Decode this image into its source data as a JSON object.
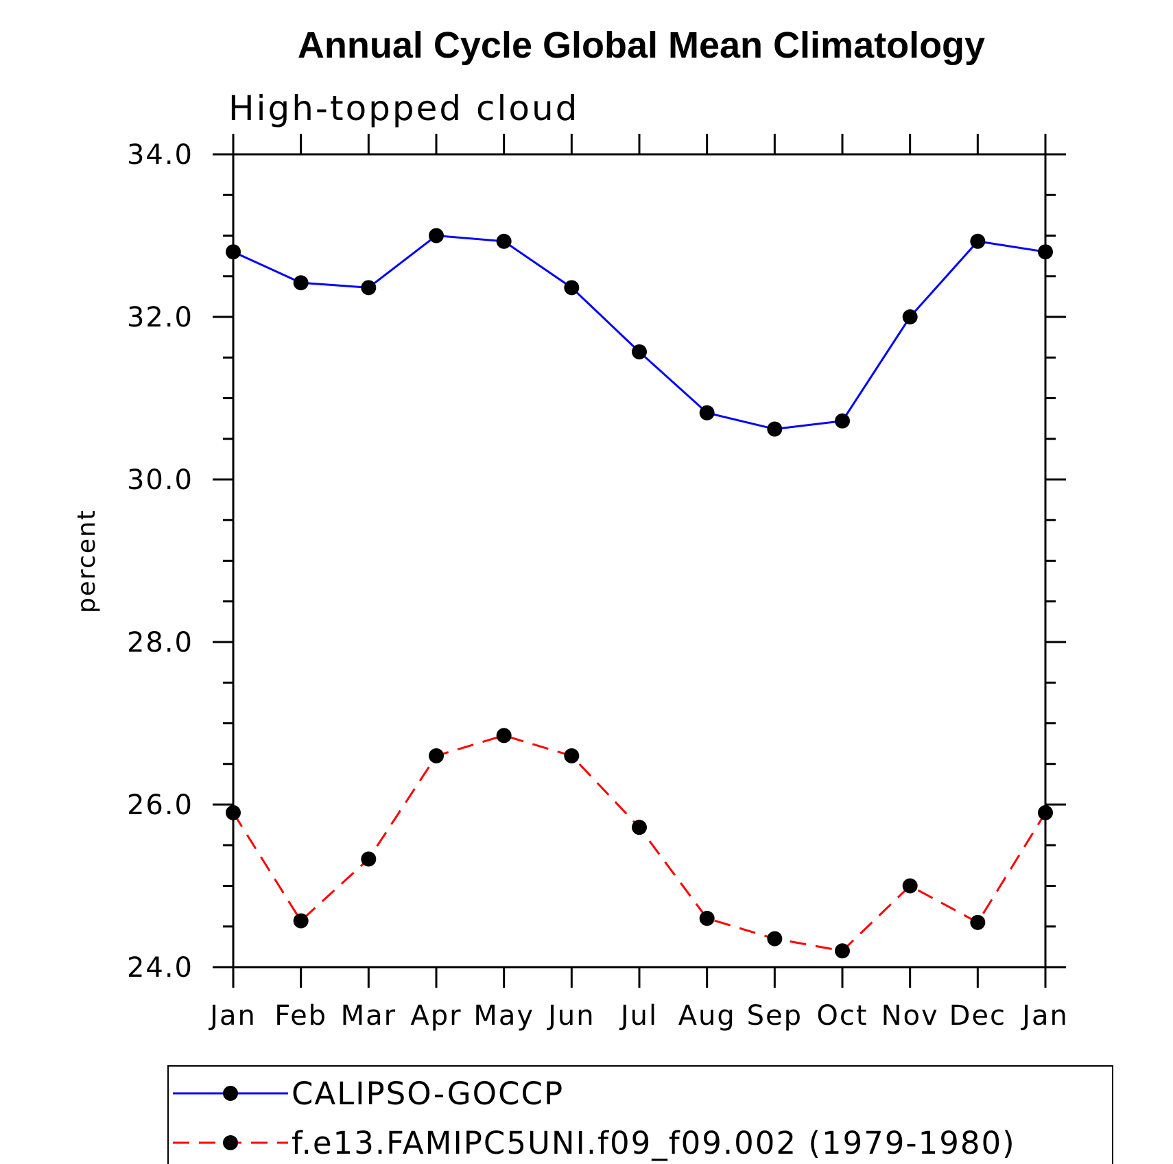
{
  "chart_data": {
    "type": "line",
    "title": "Annual Cycle Global Mean Climatology",
    "subtitle": "High-topped cloud",
    "ylabel": "percent",
    "xlabel": "",
    "ylim": [
      24.0,
      34.0
    ],
    "yticks": [
      "24.0",
      "26.0",
      "28.0",
      "30.0",
      "32.0",
      "34.0"
    ],
    "categories": [
      "Jan",
      "Feb",
      "Mar",
      "Apr",
      "May",
      "Jun",
      "Jul",
      "Aug",
      "Sep",
      "Oct",
      "Nov",
      "Dec",
      "Jan"
    ],
    "series": [
      {
        "name": "CALIPSO-GOCCP",
        "color": "#0000ff",
        "dash": "solid",
        "values": [
          32.8,
          32.42,
          32.36,
          33.0,
          32.93,
          32.36,
          31.57,
          30.82,
          30.62,
          30.72,
          32.0,
          32.93,
          32.8
        ]
      },
      {
        "name": "f.e13.FAMIPC5UNI.f09_f09.002 (1979-1980)",
        "color": "#ff0000",
        "dash": "dashed",
        "values": [
          25.9,
          24.57,
          25.33,
          26.6,
          26.85,
          26.6,
          25.72,
          24.6,
          24.35,
          24.2,
          25.0,
          24.55,
          25.9
        ]
      }
    ],
    "legend": "bottom-left"
  }
}
